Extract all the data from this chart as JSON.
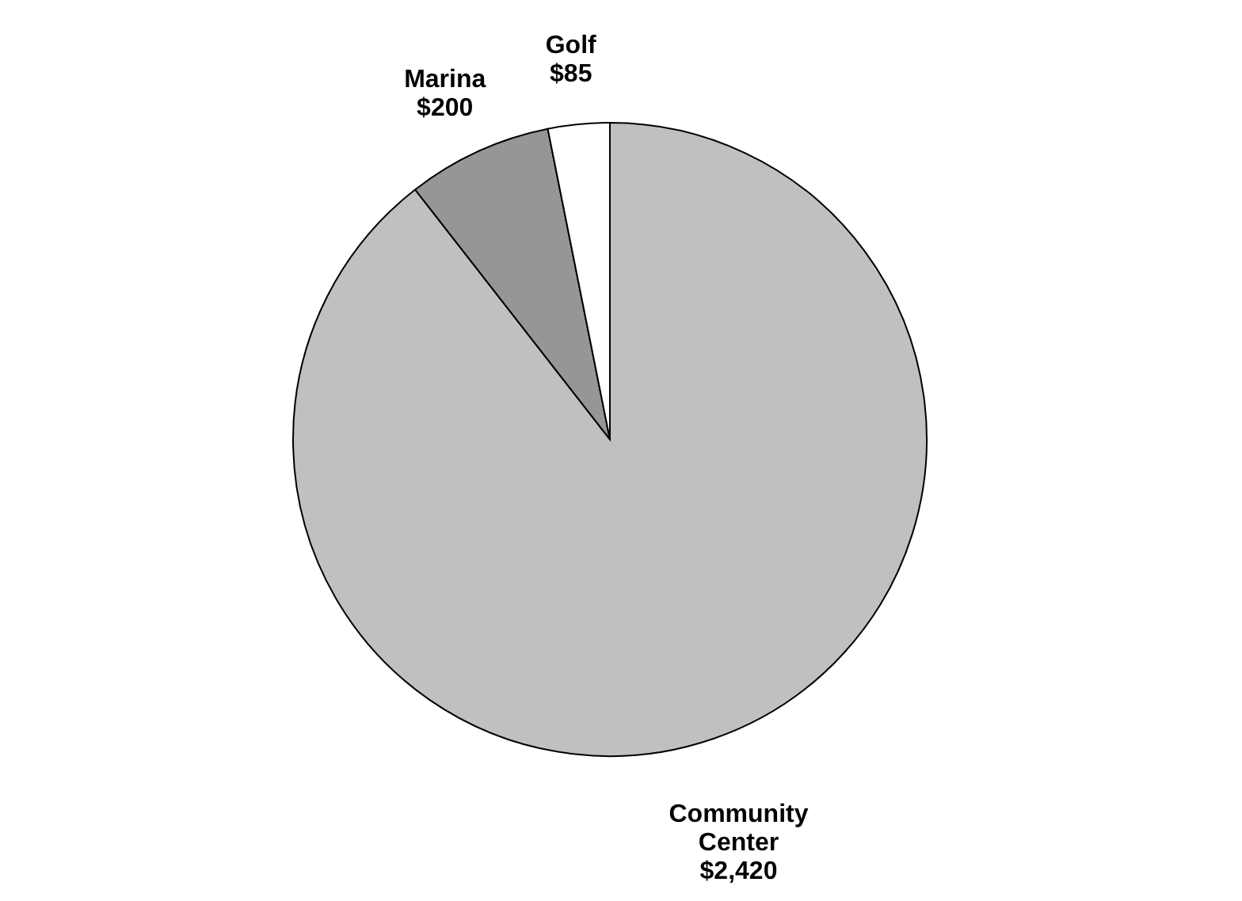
{
  "chart_data": {
    "type": "pie",
    "categories": [
      "Community Center",
      "Marina",
      "Golf"
    ],
    "values": [
      2420,
      200,
      85
    ],
    "value_labels": [
      "$2,420",
      "$200",
      "$85"
    ],
    "colors": [
      "#c0c0c0",
      "#969696",
      "#ffffff"
    ],
    "legend": false
  }
}
